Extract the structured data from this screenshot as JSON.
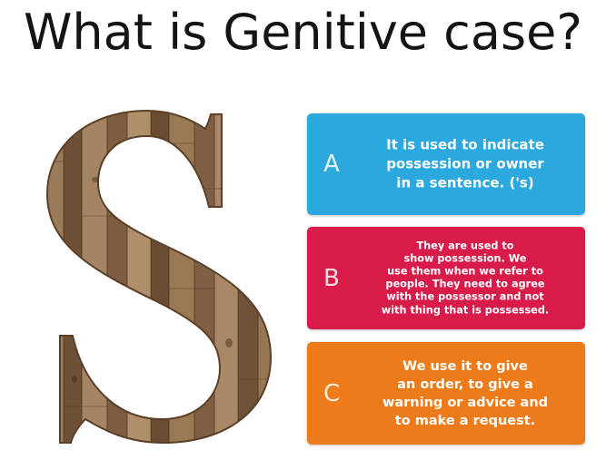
{
  "title": "What is Genitive case?",
  "logo": {
    "letter": "S"
  },
  "options": [
    {
      "letter": "A",
      "text": "It is used to indicate\npossession or owner\nin a sentence. ('s)",
      "color": "#2ba8de"
    },
    {
      "letter": "B",
      "text": "They are used to\nshow possession. We\nuse them when we refer to\npeople. They need to agree\nwith the possessor and not\nwith thing that is possessed.",
      "color": "#d81b49"
    },
    {
      "letter": "C",
      "text": "We use it to give\nan order, to give a\nwarning or advice and\nto make a request.",
      "color": "#ee7b1a"
    }
  ]
}
